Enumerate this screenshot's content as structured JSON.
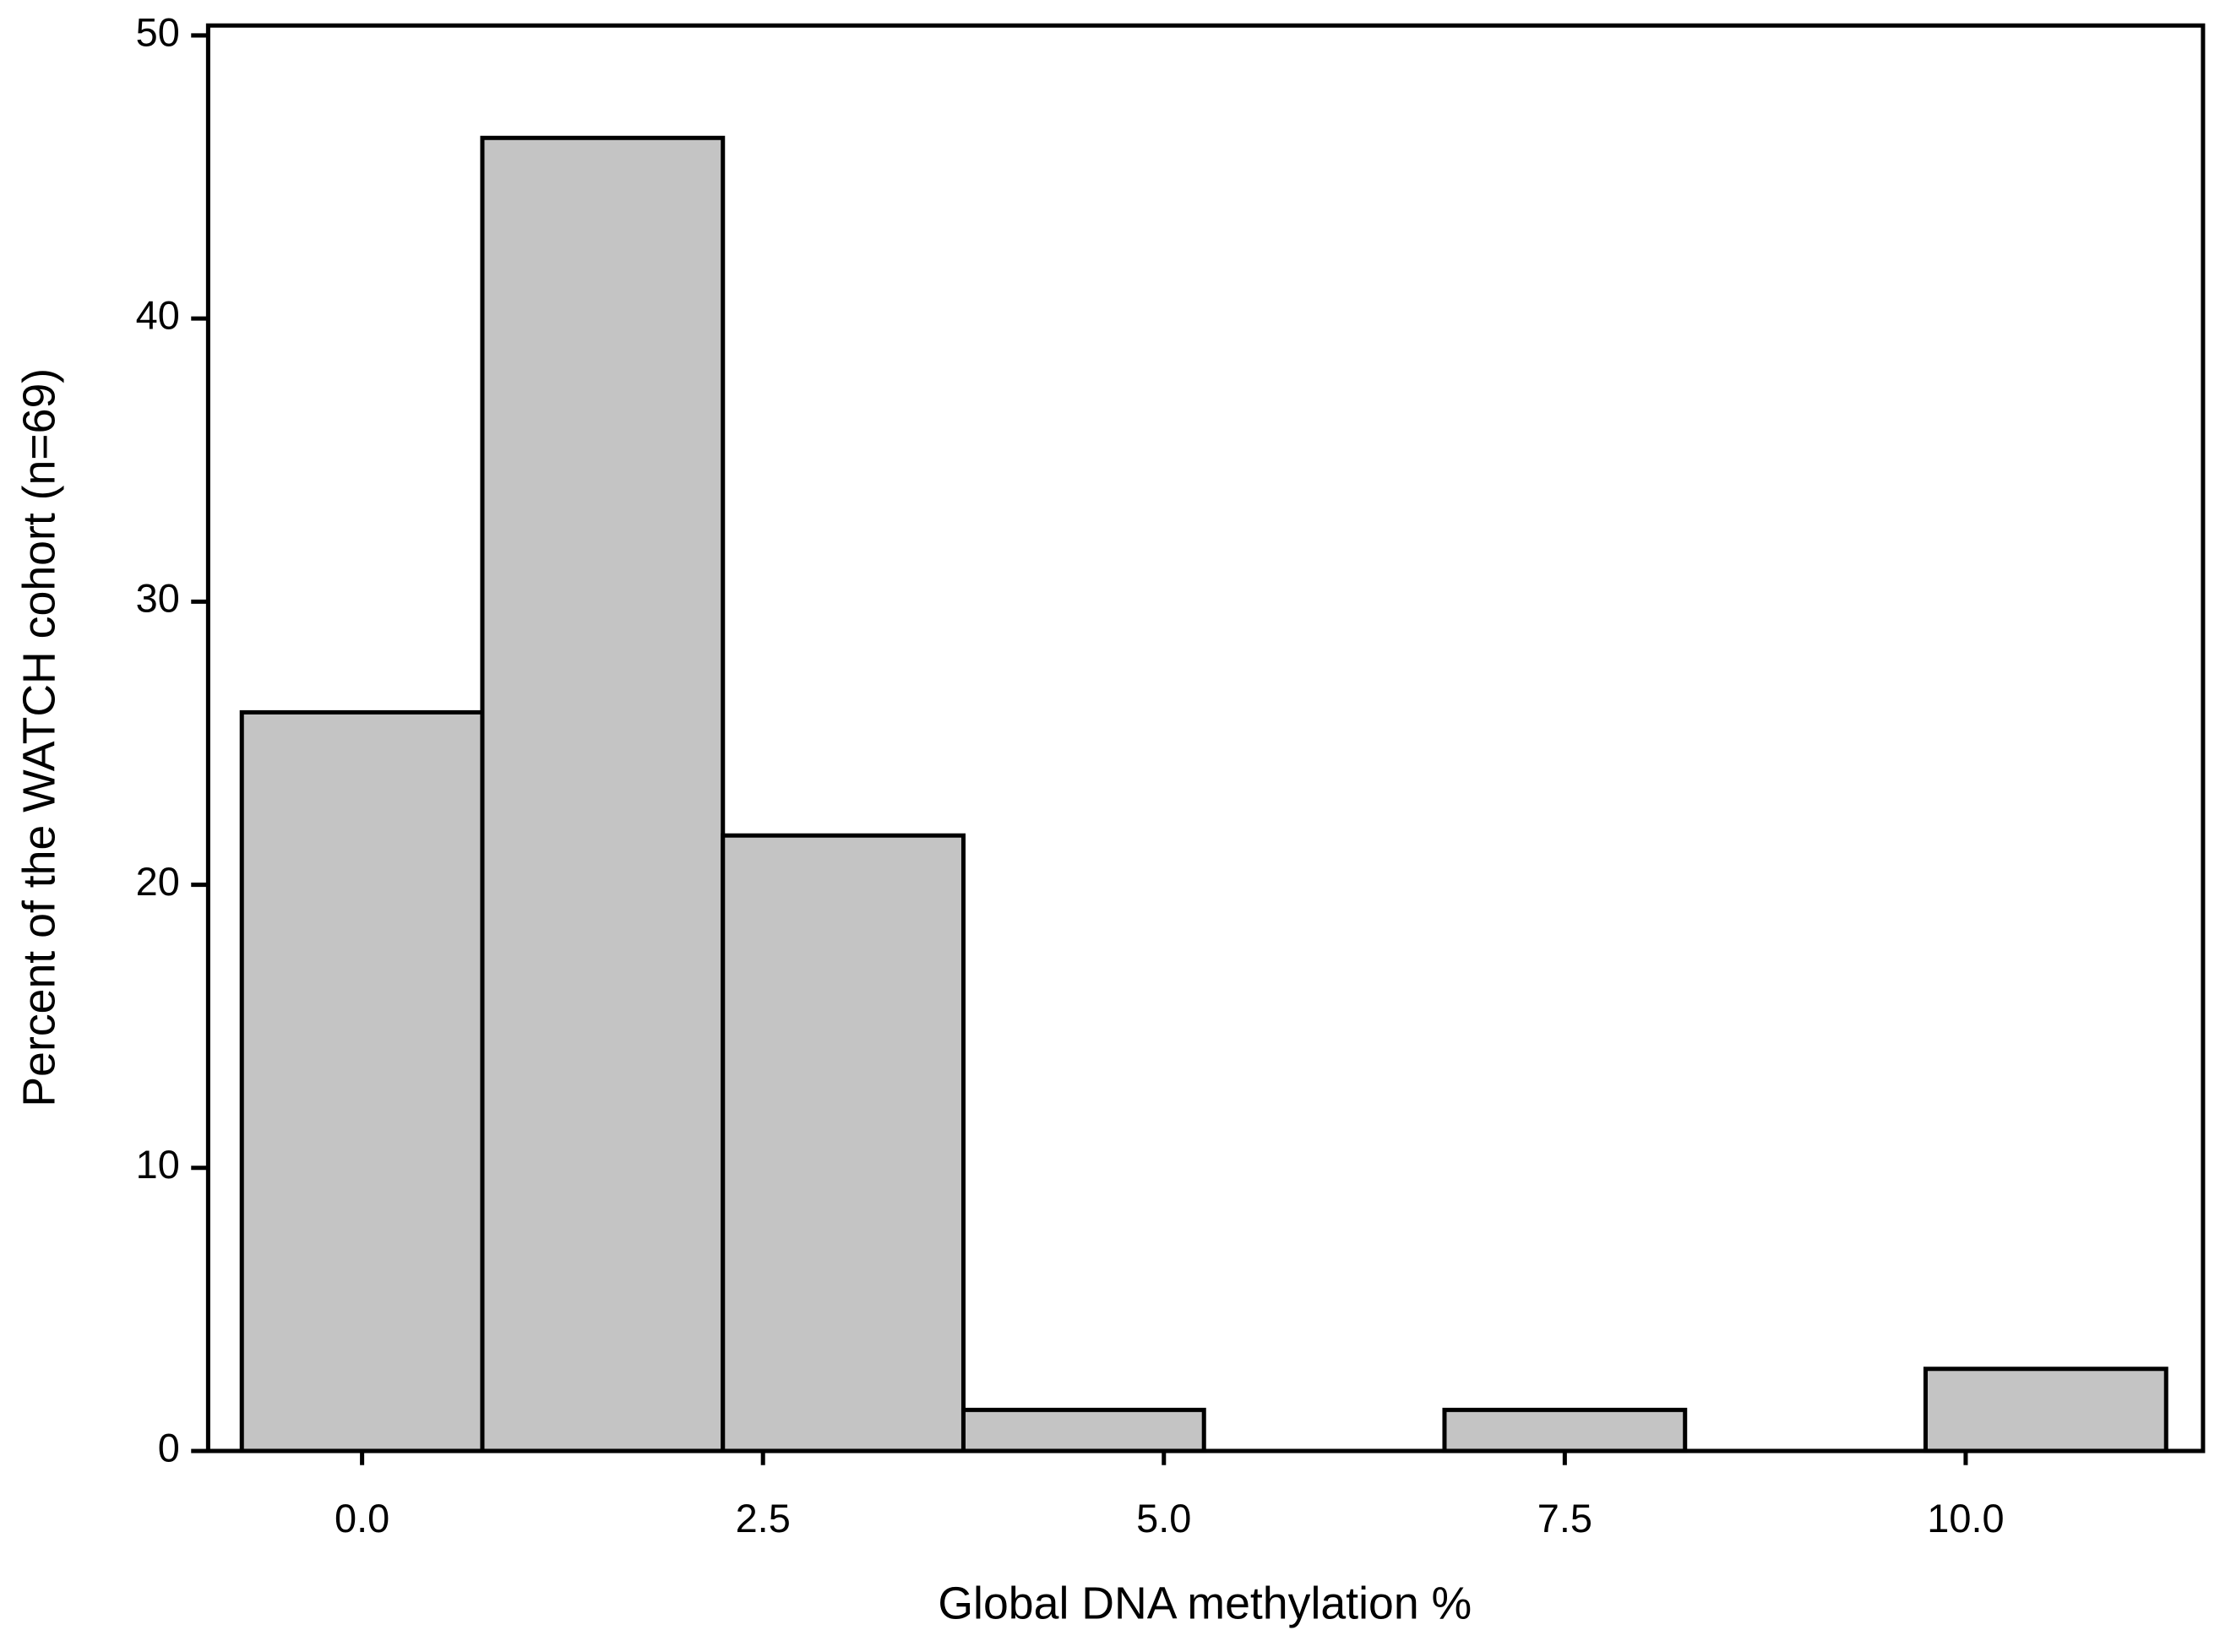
{
  "chart_data": {
    "type": "histogram",
    "x_label": "Global DNA methylation %",
    "y_label": "Percent of the WATCH cohort (n=69)",
    "bins": [
      -0.75,
      0.75,
      2.25,
      3.75,
      5.25,
      6.75,
      8.25,
      9.75,
      11.25
    ],
    "values": [
      26.09,
      46.38,
      21.74,
      1.45,
      0,
      1.45,
      0,
      2.9
    ],
    "color": "#c4c4c4",
    "xlim": [
      -0.96,
      11.48
    ],
    "ylim": [
      0,
      50.35
    ],
    "xticks": [
      {
        "value": 0,
        "label": "0.0"
      },
      {
        "value": 2.5,
        "label": "2.5"
      },
      {
        "value": 5,
        "label": "5.0"
      },
      {
        "value": 7.5,
        "label": "7.5"
      },
      {
        "value": 10,
        "label": "10.0"
      }
    ],
    "yticks": [
      0,
      10,
      20,
      30,
      40,
      50
    ]
  }
}
